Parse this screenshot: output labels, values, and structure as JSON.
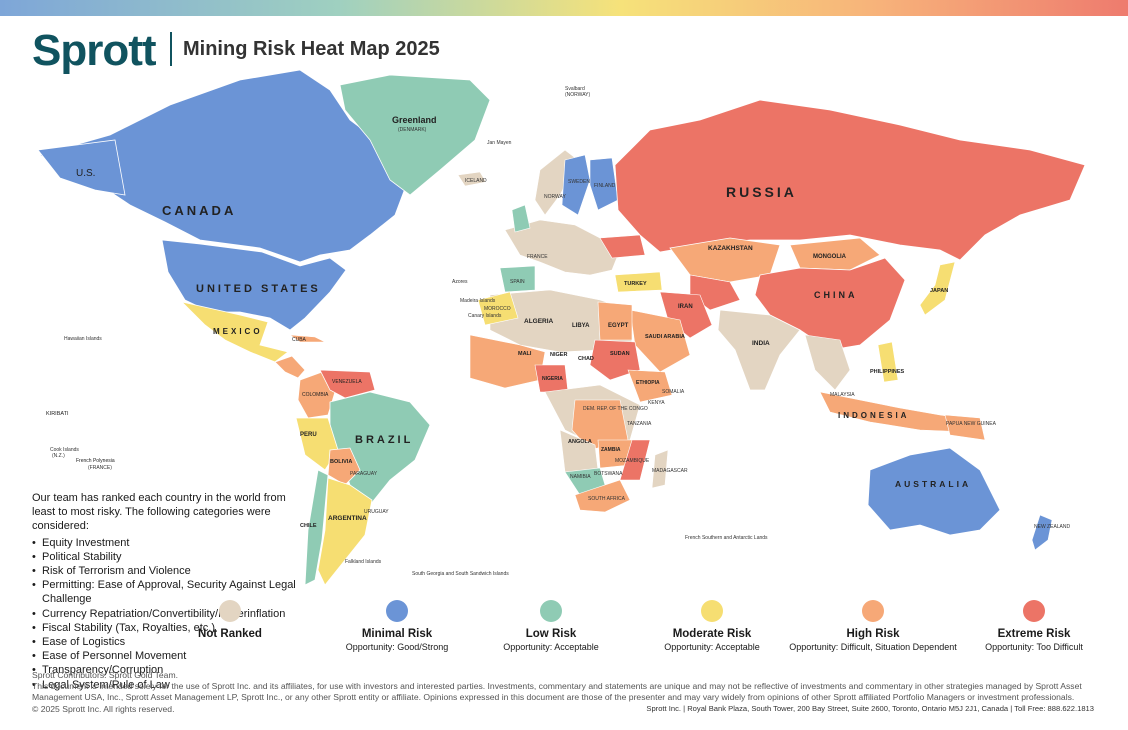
{
  "header": {
    "logo": "Sprott",
    "title": "Mining Risk Heat Map 2025"
  },
  "colors": {
    "not_ranked": "#e3d5c2",
    "minimal": "#6b94d6",
    "low": "#8fcbb4",
    "moderate": "#f6de72",
    "high": "#f6a877",
    "extreme": "#ec7466",
    "water": "#ffffff"
  },
  "map_labels": {
    "canada": "CANADA",
    "united_states": "UNITED STATES",
    "us": "U.S.",
    "greenland": "Greenland",
    "denmark": "(DENMARK)",
    "russia": "RUSSIA",
    "kazakhstan": "KAZAKHSTAN",
    "mongolia": "MONGOLIA",
    "china": "CHINA",
    "india": "INDIA",
    "iran": "IRAN",
    "turkey": "TURKEY",
    "saudi_arabia": "SAUDI ARABIA",
    "egypt": "EGYPT",
    "libya": "LIBYA",
    "algeria": "ALGERIA",
    "mali": "MALI",
    "niger": "NIGER",
    "chad": "CHAD",
    "sudan": "SUDAN",
    "ethiopia": "ETHIOPIA",
    "nigeria": "NIGERIA",
    "dr_congo": "DEM. REP. OF THE CONGO",
    "angola": "ANGOLA",
    "zambia": "ZAMBIA",
    "south_africa": "SOUTH AFRICA",
    "madagascar": "MADAGASCAR",
    "brazil": "BRAZIL",
    "peru": "PERU",
    "bolivia": "BOLIVIA",
    "argentina": "ARGENTINA",
    "chile": "CHILE",
    "colombia": "COLOMBIA",
    "venezuela": "VENEZUELA",
    "mexico": "MEXICO",
    "cuba": "CUBA",
    "australia": "AUSTRALIA",
    "indonesia": "INDONESIA",
    "philippines": "PHILIPPINES",
    "japan": "JAPAN",
    "papua_new_guinea": "PAPUA NEW GUINEA",
    "new_zealand": "NEW ZEALAND",
    "iceland": "ICELAND",
    "norway": "NORWAY",
    "sweden": "SWEDEN",
    "finland": "FINLAND",
    "spain": "SPAIN",
    "france": "FRANCE",
    "morocco": "MOROCCO",
    "kiribati": "KIRIBATI",
    "french_polynesia": "French Polynesia",
    "france_paren": "(FRANCE)",
    "svalbard": "Svalbard",
    "norway_paren": "(NORWAY)",
    "jan_mayen": "Jan Mayen",
    "azores": "Azores",
    "madeira": "Madeira Islands",
    "canary": "Canary Islands",
    "french_southern": "French Southern and Antarctic Lands",
    "falkland": "Falkland Islands",
    "south_georgia": "South Georgia and South Sandwich Islands",
    "cook_islands": "Cook Islands",
    "nz_paren": "(N.Z.)",
    "hawaiian": "Hawaiian Islands",
    "malaysia": "MALAYSIA",
    "kenya": "KENYA",
    "somalia": "SOMALIA",
    "tanzania": "TANZANIA",
    "mozambique": "MOZAMBIQUE",
    "namibia": "NAMIBIA",
    "botswana": "BOTSWANA",
    "paraguay": "PARAGUAY",
    "uruguay": "URUGUAY"
  },
  "panel": {
    "intro": "Our team has ranked each country in the world from least to most risky. The following categories were considered:",
    "categories": [
      "Equity Investment",
      "Political Stability",
      "Risk of Terrorism and Violence",
      "Permitting: Ease of Approval, Security Against Legal Challenge",
      "Currency Repatriation/Convertibility/Hyperinflation",
      "Fiscal Stability (Tax, Royalties, etc.)",
      "Ease of Logistics",
      "Ease of Personnel Movement",
      "Transparency/Corruption",
      "Legal System/Rule of Law"
    ]
  },
  "legend": [
    {
      "label": "Not Ranked",
      "sub": "",
      "color": "#e3d5c2"
    },
    {
      "label": "Minimal Risk",
      "sub": "Opportunity: Good/Strong",
      "color": "#6b94d6"
    },
    {
      "label": "Low Risk",
      "sub": "Opportunity: Acceptable",
      "color": "#8fcbb4"
    },
    {
      "label": "Moderate Risk",
      "sub": "Opportunity: Acceptable",
      "color": "#f6de72"
    },
    {
      "label": "High Risk",
      "sub": "Opportunity: Difficult, Situation Dependent",
      "color": "#f6a877"
    },
    {
      "label": "Extreme Risk",
      "sub": "Opportunity: Too Difficult",
      "color": "#ec7466"
    }
  ],
  "footer": {
    "contributors": "Sprott Contributors: Sprott Gold Team.",
    "disclaimer": "This document is intended solely for the use of Sprott Inc. and its affiliates, for use with investors and interested parties. Investments, commentary and statements are unique and may not be reflective of investments and commentary in other strategies managed by Sprott Asset Management USA, Inc., Sprott Asset Management LP, Sprott Inc., or any other Sprott entity or affiliate. Opinions expressed in this document are those of the presenter and may vary widely from opinions of other Sprott affiliated Portfolio Managers or investment professionals.",
    "copyright": "© 2025 Sprott Inc. All rights reserved.",
    "address": "Sprott Inc. | Royal Bank Plaza, South Tower, 200 Bay Street, Suite 2600, Toronto, Ontario M5J 2J1, Canada | Toll Free: 888.622.1813"
  }
}
